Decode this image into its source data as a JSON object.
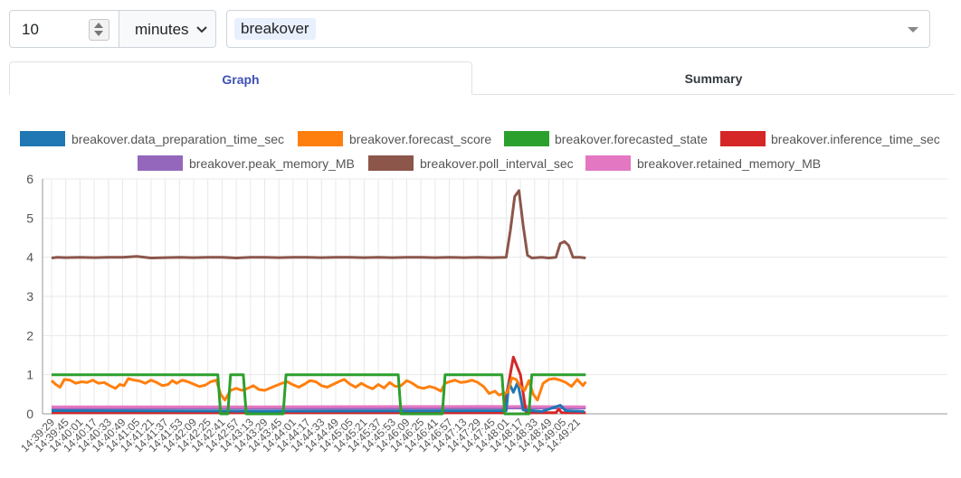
{
  "controls": {
    "duration_value": "10",
    "duration_unit": "minutes",
    "query_chip": "breakover"
  },
  "tabs": [
    {
      "label": "Graph",
      "active": true
    },
    {
      "label": "Summary",
      "active": false
    }
  ],
  "icons": [
    "spinner-icon",
    "chevron-down-icon",
    "dropdown-arrow-icon"
  ],
  "chart_data": {
    "type": "line",
    "grid": true,
    "legend_position": "top",
    "ylim": [
      0,
      6
    ],
    "y_ticks": [
      "0",
      "1",
      "2",
      "3",
      "4",
      "5",
      "6"
    ],
    "x_ticks": [
      "14:39:29",
      "14:39:45",
      "14:40:01",
      "14:40:17",
      "14:40:33",
      "14:40:49",
      "14:41:05",
      "14:41:21",
      "14:41:37",
      "14:41:53",
      "14:42:09",
      "14:42:25",
      "14:42:41",
      "14:42:57",
      "14:43:13",
      "14:43:29",
      "14:43:45",
      "14:44:01",
      "14:44:17",
      "14:44:33",
      "14:44:49",
      "14:45:05",
      "14:45:21",
      "14:45:37",
      "14:45:53",
      "14:46:09",
      "14:46:25",
      "14:46:41",
      "14:46:57",
      "14:47:13",
      "14:47:29",
      "14:47:45",
      "14:48:01",
      "14:48:17",
      "14:48:33",
      "14:48:49",
      "14:49:05",
      "14:49:21"
    ],
    "series": [
      {
        "name": "breakover.data_preparation_time_sec",
        "color": "#1f77b4",
        "points": [
          [
            0,
            0.08
          ],
          [
            15,
            0.07
          ],
          [
            32,
            0.08
          ],
          [
            32.2,
            0.8
          ],
          [
            32.5,
            0.55
          ],
          [
            32.8,
            0.8
          ],
          [
            33.2,
            0.1
          ],
          [
            34.5,
            0.06
          ],
          [
            35.8,
            0.22
          ],
          [
            36.2,
            0.08
          ],
          [
            37.5,
            0.06
          ]
        ]
      },
      {
        "name": "breakover.forecast_score",
        "color": "#ff7f0e",
        "points": [
          [
            0,
            0.85
          ],
          [
            0.3,
            0.75
          ],
          [
            0.6,
            0.68
          ],
          [
            0.9,
            0.88
          ],
          [
            1.3,
            0.86
          ],
          [
            1.7,
            0.78
          ],
          [
            2.1,
            0.82
          ],
          [
            2.5,
            0.8
          ],
          [
            2.9,
            0.86
          ],
          [
            3.3,
            0.78
          ],
          [
            3.7,
            0.8
          ],
          [
            4.1,
            0.72
          ],
          [
            4.5,
            0.65
          ],
          [
            4.8,
            0.75
          ],
          [
            5.1,
            0.72
          ],
          [
            5.4,
            0.9
          ],
          [
            5.8,
            0.86
          ],
          [
            6.2,
            0.84
          ],
          [
            6.6,
            0.78
          ],
          [
            7.0,
            0.86
          ],
          [
            7.4,
            0.8
          ],
          [
            7.8,
            0.72
          ],
          [
            8.2,
            0.75
          ],
          [
            8.5,
            0.85
          ],
          [
            8.8,
            0.78
          ],
          [
            9.2,
            0.86
          ],
          [
            9.6,
            0.82
          ],
          [
            10.0,
            0.76
          ],
          [
            10.4,
            0.7
          ],
          [
            10.8,
            0.73
          ],
          [
            11.2,
            0.82
          ],
          [
            11.6,
            0.86
          ],
          [
            11.9,
            0.5
          ],
          [
            12.2,
            0.35
          ],
          [
            12.6,
            0.6
          ],
          [
            13.0,
            0.65
          ],
          [
            13.4,
            0.6
          ],
          [
            13.8,
            0.65
          ],
          [
            14.2,
            0.72
          ],
          [
            14.6,
            0.62
          ],
          [
            15.0,
            0.6
          ],
          [
            15.4,
            0.66
          ],
          [
            15.8,
            0.72
          ],
          [
            16.2,
            0.78
          ],
          [
            16.6,
            0.82
          ],
          [
            17.0,
            0.74
          ],
          [
            17.4,
            0.68
          ],
          [
            17.8,
            0.76
          ],
          [
            18.2,
            0.85
          ],
          [
            18.6,
            0.82
          ],
          [
            19.0,
            0.72
          ],
          [
            19.4,
            0.68
          ],
          [
            19.8,
            0.75
          ],
          [
            20.2,
            0.82
          ],
          [
            20.6,
            0.88
          ],
          [
            21.0,
            0.76
          ],
          [
            21.4,
            0.68
          ],
          [
            21.8,
            0.78
          ],
          [
            22.2,
            0.7
          ],
          [
            22.6,
            0.64
          ],
          [
            23.0,
            0.75
          ],
          [
            23.4,
            0.66
          ],
          [
            23.8,
            0.8
          ],
          [
            24.2,
            0.7
          ],
          [
            24.6,
            0.72
          ],
          [
            25.0,
            0.85
          ],
          [
            25.4,
            0.78
          ],
          [
            25.8,
            0.68
          ],
          [
            26.2,
            0.65
          ],
          [
            26.6,
            0.7
          ],
          [
            27.0,
            0.66
          ],
          [
            27.4,
            0.58
          ],
          [
            27.7,
            0.78
          ],
          [
            28.0,
            0.82
          ],
          [
            28.4,
            0.86
          ],
          [
            28.8,
            0.8
          ],
          [
            29.2,
            0.82
          ],
          [
            29.6,
            0.86
          ],
          [
            30.0,
            0.8
          ],
          [
            30.4,
            0.7
          ],
          [
            30.8,
            0.52
          ],
          [
            31.2,
            0.58
          ],
          [
            31.5,
            0.48
          ],
          [
            31.8,
            0.52
          ],
          [
            32.1,
            0.55
          ],
          [
            32.4,
            0.92
          ],
          [
            32.7,
            0.88
          ],
          [
            33.0,
            0.7
          ],
          [
            33.3,
            0.6
          ],
          [
            33.6,
            0.85
          ],
          [
            33.9,
            0.5
          ],
          [
            34.2,
            0.35
          ],
          [
            34.6,
            0.78
          ],
          [
            35.0,
            0.88
          ],
          [
            35.4,
            0.9
          ],
          [
            35.8,
            0.86
          ],
          [
            36.2,
            0.8
          ],
          [
            36.6,
            0.7
          ],
          [
            37.0,
            0.88
          ],
          [
            37.4,
            0.72
          ],
          [
            37.6,
            0.82
          ]
        ]
      },
      {
        "name": "breakover.forecasted_state",
        "color": "#2ca02c",
        "points": [
          [
            0,
            1
          ],
          [
            11.7,
            1
          ],
          [
            11.9,
            0
          ],
          [
            12.4,
            0
          ],
          [
            12.6,
            1
          ],
          [
            13.5,
            1
          ],
          [
            13.7,
            0
          ],
          [
            16.3,
            0
          ],
          [
            16.5,
            1
          ],
          [
            24.4,
            1
          ],
          [
            24.6,
            0
          ],
          [
            27.5,
            0
          ],
          [
            27.7,
            1
          ],
          [
            31.7,
            1
          ],
          [
            31.9,
            0
          ],
          [
            33.6,
            0
          ],
          [
            33.8,
            1
          ],
          [
            37.6,
            1
          ]
        ]
      },
      {
        "name": "breakover.inference_time_sec",
        "color": "#d62728",
        "points": [
          [
            0,
            0.03
          ],
          [
            31.8,
            0.03
          ],
          [
            32.5,
            1.45
          ],
          [
            33.0,
            1.0
          ],
          [
            33.4,
            0.03
          ],
          [
            35.5,
            0.03
          ],
          [
            35.7,
            0.12
          ],
          [
            35.9,
            0.03
          ],
          [
            37.6,
            0.03
          ]
        ]
      },
      {
        "name": "breakover.peak_memory_MB",
        "color": "#9467bd",
        "points": [
          [
            0,
            0.14
          ],
          [
            10,
            0.15
          ],
          [
            20,
            0.14
          ],
          [
            30,
            0.15
          ],
          [
            37.6,
            0.15
          ]
        ]
      },
      {
        "name": "breakover.poll_interval_sec",
        "color": "#8c564b",
        "points": [
          [
            0,
            3.98
          ],
          [
            0.4,
            4.0
          ],
          [
            1,
            3.99
          ],
          [
            2,
            4.0
          ],
          [
            3,
            3.99
          ],
          [
            4,
            4.0
          ],
          [
            5,
            4.0
          ],
          [
            6,
            4.02
          ],
          [
            7,
            3.98
          ],
          [
            8,
            3.99
          ],
          [
            9,
            4.0
          ],
          [
            10,
            3.99
          ],
          [
            11,
            4.0
          ],
          [
            12,
            4.0
          ],
          [
            13,
            3.98
          ],
          [
            14,
            4.0
          ],
          [
            15,
            4.0
          ],
          [
            16,
            3.99
          ],
          [
            17,
            4.0
          ],
          [
            18,
            4.0
          ],
          [
            19,
            3.99
          ],
          [
            20,
            4.0
          ],
          [
            21,
            4.0
          ],
          [
            22,
            3.99
          ],
          [
            23,
            4.0
          ],
          [
            24,
            3.99
          ],
          [
            25,
            4.0
          ],
          [
            26,
            4.0
          ],
          [
            27,
            3.99
          ],
          [
            28,
            4.0
          ],
          [
            29,
            3.99
          ],
          [
            30,
            4.0
          ],
          [
            31,
            3.99
          ],
          [
            32,
            4.0
          ],
          [
            32.3,
            4.7
          ],
          [
            32.6,
            5.55
          ],
          [
            32.9,
            5.7
          ],
          [
            33.2,
            4.8
          ],
          [
            33.5,
            4.05
          ],
          [
            33.8,
            3.98
          ],
          [
            34.5,
            4.0
          ],
          [
            35,
            3.98
          ],
          [
            35.5,
            4.0
          ],
          [
            35.8,
            4.35
          ],
          [
            36.1,
            4.4
          ],
          [
            36.4,
            4.3
          ],
          [
            36.7,
            4.0
          ],
          [
            37.2,
            4.0
          ],
          [
            37.6,
            3.98
          ]
        ]
      },
      {
        "name": "breakover.retained_memory_MB",
        "color": "#e377c2",
        "points": [
          [
            0,
            0.18
          ],
          [
            15,
            0.18
          ],
          [
            30,
            0.19
          ],
          [
            37.6,
            0.18
          ]
        ]
      }
    ]
  }
}
